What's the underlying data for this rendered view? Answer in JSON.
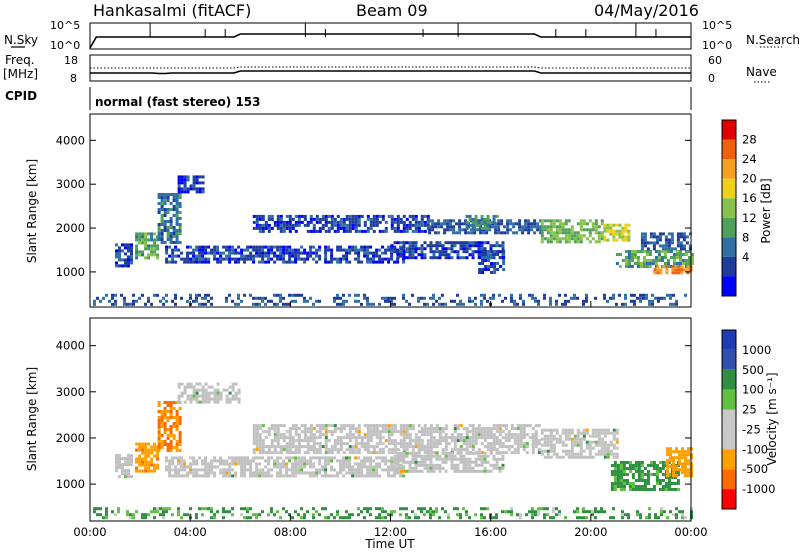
{
  "header": {
    "station": "Hankasalmi (fitACF)",
    "beam": "Beam 09",
    "date": "04/May/2016"
  },
  "sky_panel": {
    "left_label": "N.Sky",
    "right_label": "N.Search",
    "left_ticks": [
      "10^5",
      "10^0"
    ],
    "right_ticks": [
      "10^5",
      "10^0"
    ]
  },
  "freq_panel": {
    "left_label_line1": "Freq.",
    "left_label_line2": "[MHz]",
    "right_label": "Nave",
    "left_ticks": [
      "18",
      "8"
    ],
    "right_ticks": [
      "60",
      "0"
    ]
  },
  "cpid": {
    "label": "CPID",
    "value": "normal (fast stereo) 153"
  },
  "colors": {
    "power_scale": [
      "#0000ff",
      "#1e3c9c",
      "#2f6fa5",
      "#4fa05a",
      "#89c24a",
      "#f0d018",
      "#f5a020",
      "#f06010",
      "#e00000"
    ],
    "velocity_scale": [
      "#ff0000",
      "#ff6a00",
      "#ffa000",
      "#c8c8c8",
      "#c8c8c8",
      "#60c040",
      "#2f8f40",
      "#3050b0",
      "#1e3cb4"
    ],
    "ground_scatter": "#c0c0c0"
  },
  "chart_data": [
    {
      "type": "heatmap",
      "name": "power",
      "ylabel": "Slant Range [km]",
      "y_ticks": [
        1000,
        2000,
        3000,
        4000
      ],
      "ylim": [
        200,
        4600
      ],
      "colorbar": {
        "label": "Power [dB]",
        "levels": [
          4,
          8,
          12,
          16,
          20,
          24,
          28
        ]
      },
      "bands": [
        {
          "t0": 1.0,
          "t1": 1.7,
          "r0": 1150,
          "r1": 1650,
          "dB": 6
        },
        {
          "t0": 1.8,
          "t1": 2.7,
          "r0": 1300,
          "r1": 1900,
          "dB": 14
        },
        {
          "t0": 2.7,
          "t1": 3.6,
          "r0": 1700,
          "r1": 2800,
          "dB": 10
        },
        {
          "t0": 3.5,
          "t1": 4.5,
          "r0": 2800,
          "r1": 3200,
          "dB": 5
        },
        {
          "t0": 3.0,
          "t1": 12.5,
          "r0": 1200,
          "r1": 1600,
          "dB": 6
        },
        {
          "t0": 6.5,
          "t1": 13.5,
          "r0": 1900,
          "r1": 2300,
          "dB": 6
        },
        {
          "t0": 12.0,
          "t1": 16.5,
          "r0": 1300,
          "r1": 1700,
          "dB": 6
        },
        {
          "t0": 13.5,
          "t1": 18.0,
          "r0": 1900,
          "r1": 2200,
          "dB": 8
        },
        {
          "t0": 15.0,
          "t1": 16.2,
          "r0": 2000,
          "r1": 2300,
          "dB": 12
        },
        {
          "t0": 15.5,
          "t1": 16.5,
          "r0": 1000,
          "r1": 1500,
          "dB": 6
        },
        {
          "t0": 18.0,
          "t1": 20.5,
          "r0": 1700,
          "r1": 2200,
          "dB": 16
        },
        {
          "t0": 20.5,
          "t1": 21.5,
          "r0": 1700,
          "r1": 2100,
          "dB": 20
        },
        {
          "t0": 21.0,
          "t1": 24.0,
          "r0": 1100,
          "r1": 1500,
          "dB": 14
        },
        {
          "t0": 22.5,
          "t1": 24.0,
          "r0": 1000,
          "r1": 1150,
          "dB": 28
        },
        {
          "t0": 22.0,
          "t1": 24.0,
          "r0": 1550,
          "r1": 1900,
          "dB": 8
        },
        {
          "t0": 0.0,
          "t1": 24.0,
          "r0": 250,
          "r1": 500,
          "dB": 8
        }
      ]
    },
    {
      "type": "heatmap",
      "name": "velocity",
      "ylabel": "Slant Range [km]",
      "y_ticks": [
        1000,
        2000,
        3000,
        4000
      ],
      "ylim": [
        200,
        4600
      ],
      "colorbar": {
        "label": "Velocity [m s⁻¹]",
        "levels": [
          1000,
          500,
          100,
          25,
          -25,
          -100,
          -500,
          -1000
        ]
      },
      "x_ticks": [
        "00:00",
        "04:00",
        "08:00",
        "12:00",
        "16:00",
        "20:00",
        "00:00"
      ],
      "xlabel": "Time UT",
      "bands": [
        {
          "t0": 1.0,
          "t1": 1.7,
          "r0": 1150,
          "r1": 1650,
          "v": 0
        },
        {
          "t0": 1.8,
          "t1": 2.7,
          "r0": 1300,
          "r1": 1900,
          "v": -400
        },
        {
          "t0": 2.7,
          "t1": 3.6,
          "r0": 1700,
          "r1": 2800,
          "v": -500
        },
        {
          "t0": 3.5,
          "t1": 6.0,
          "r0": 2800,
          "r1": 3200,
          "v": 0
        },
        {
          "t0": 3.0,
          "t1": 12.5,
          "r0": 1200,
          "r1": 1600,
          "v": 0
        },
        {
          "t0": 6.5,
          "t1": 18.0,
          "r0": 1700,
          "r1": 2300,
          "v": 0
        },
        {
          "t0": 12.0,
          "t1": 16.5,
          "r0": 1300,
          "r1": 1700,
          "v": 0
        },
        {
          "t0": 18.0,
          "t1": 21.0,
          "r0": 1600,
          "r1": 2200,
          "v": 0
        },
        {
          "t0": 20.8,
          "t1": 23.5,
          "r0": 900,
          "r1": 1500,
          "v": 200
        },
        {
          "t0": 23.0,
          "t1": 24.0,
          "r0": 1200,
          "r1": 1800,
          "v": -300
        },
        {
          "t0": 0.0,
          "t1": 24.0,
          "r0": 250,
          "r1": 500,
          "v": 150
        }
      ]
    }
  ]
}
